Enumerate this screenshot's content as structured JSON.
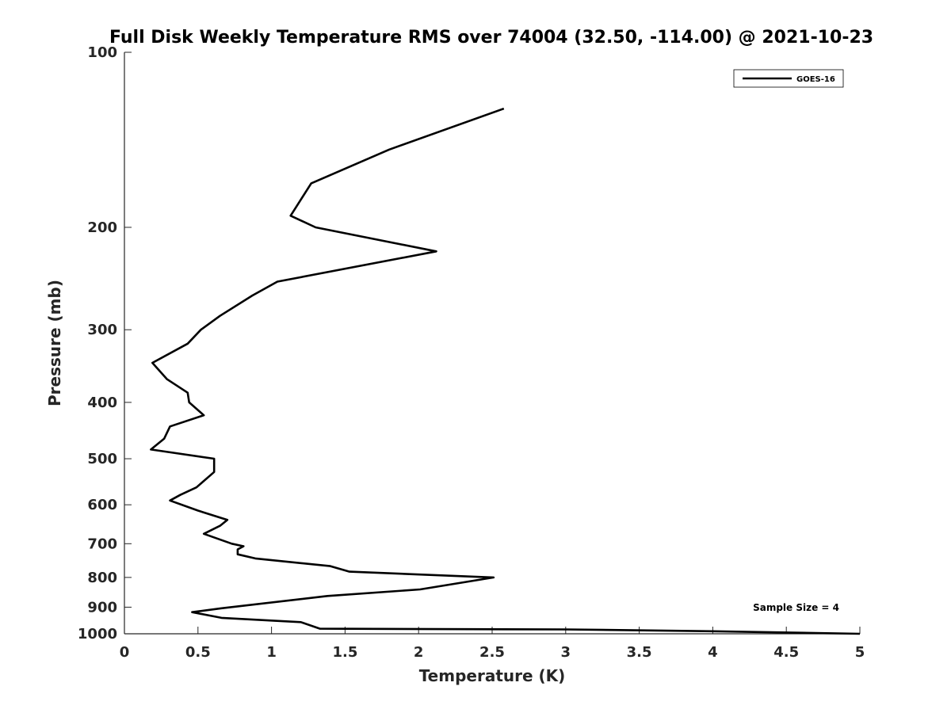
{
  "chart_data": {
    "type": "line",
    "title": "Full Disk Weekly Temperature RMS over 74004 (32.50, -114.00) @ 2021-10-23",
    "xlabel": "Temperature (K)",
    "ylabel": "Pressure (mb)",
    "xlim": [
      0,
      5
    ],
    "ylim": [
      100,
      1000
    ],
    "yscale": "log",
    "y_reversed": true,
    "xticks": [
      0,
      0.5,
      1,
      1.5,
      2,
      2.5,
      3,
      3.5,
      4,
      4.5,
      5
    ],
    "xtick_labels": [
      "0",
      "0.5",
      "1",
      "1.5",
      "2",
      "2.5",
      "3",
      "3.5",
      "4",
      "4.5",
      "5"
    ],
    "yticks": [
      100,
      200,
      300,
      400,
      500,
      600,
      700,
      800,
      900,
      1000
    ],
    "ytick_labels": [
      "100",
      "200",
      "300",
      "400",
      "500",
      "600",
      "700",
      "800",
      "900",
      "1000"
    ],
    "grid": false,
    "legend_position": "top-right",
    "annotation": "Sample Size = 4",
    "series": [
      {
        "name": "GOES-16",
        "color": "#000000",
        "points": [
          [
            2.58,
            125
          ],
          [
            1.8,
            147
          ],
          [
            1.27,
            168
          ],
          [
            1.13,
            191
          ],
          [
            1.3,
            200
          ],
          [
            2.12,
            220
          ],
          [
            1.04,
            248
          ],
          [
            0.87,
            262
          ],
          [
            0.65,
            284
          ],
          [
            0.52,
            300
          ],
          [
            0.43,
            317
          ],
          [
            0.19,
            342
          ],
          [
            0.29,
            365
          ],
          [
            0.43,
            385
          ],
          [
            0.44,
            400
          ],
          [
            0.54,
            421
          ],
          [
            0.31,
            440
          ],
          [
            0.27,
            462
          ],
          [
            0.18,
            482
          ],
          [
            0.61,
            500
          ],
          [
            0.61,
            527
          ],
          [
            0.49,
            560
          ],
          [
            0.38,
            577
          ],
          [
            0.31,
            590
          ],
          [
            0.5,
            614
          ],
          [
            0.7,
            637
          ],
          [
            0.65,
            652
          ],
          [
            0.54,
            673
          ],
          [
            0.73,
            700
          ],
          [
            0.81,
            707
          ],
          [
            0.77,
            716
          ],
          [
            0.77,
            730
          ],
          [
            0.89,
            742
          ],
          [
            1.4,
            765
          ],
          [
            1.53,
            782
          ],
          [
            2.51,
            800
          ],
          [
            2.01,
            839
          ],
          [
            1.38,
            861
          ],
          [
            0.66,
            904
          ],
          [
            0.46,
            918
          ],
          [
            0.66,
            939
          ],
          [
            1.2,
            955
          ],
          [
            1.33,
            980
          ],
          [
            3.0,
            983
          ],
          [
            4.0,
            990
          ],
          [
            5.0,
            1000
          ]
        ]
      }
    ]
  }
}
